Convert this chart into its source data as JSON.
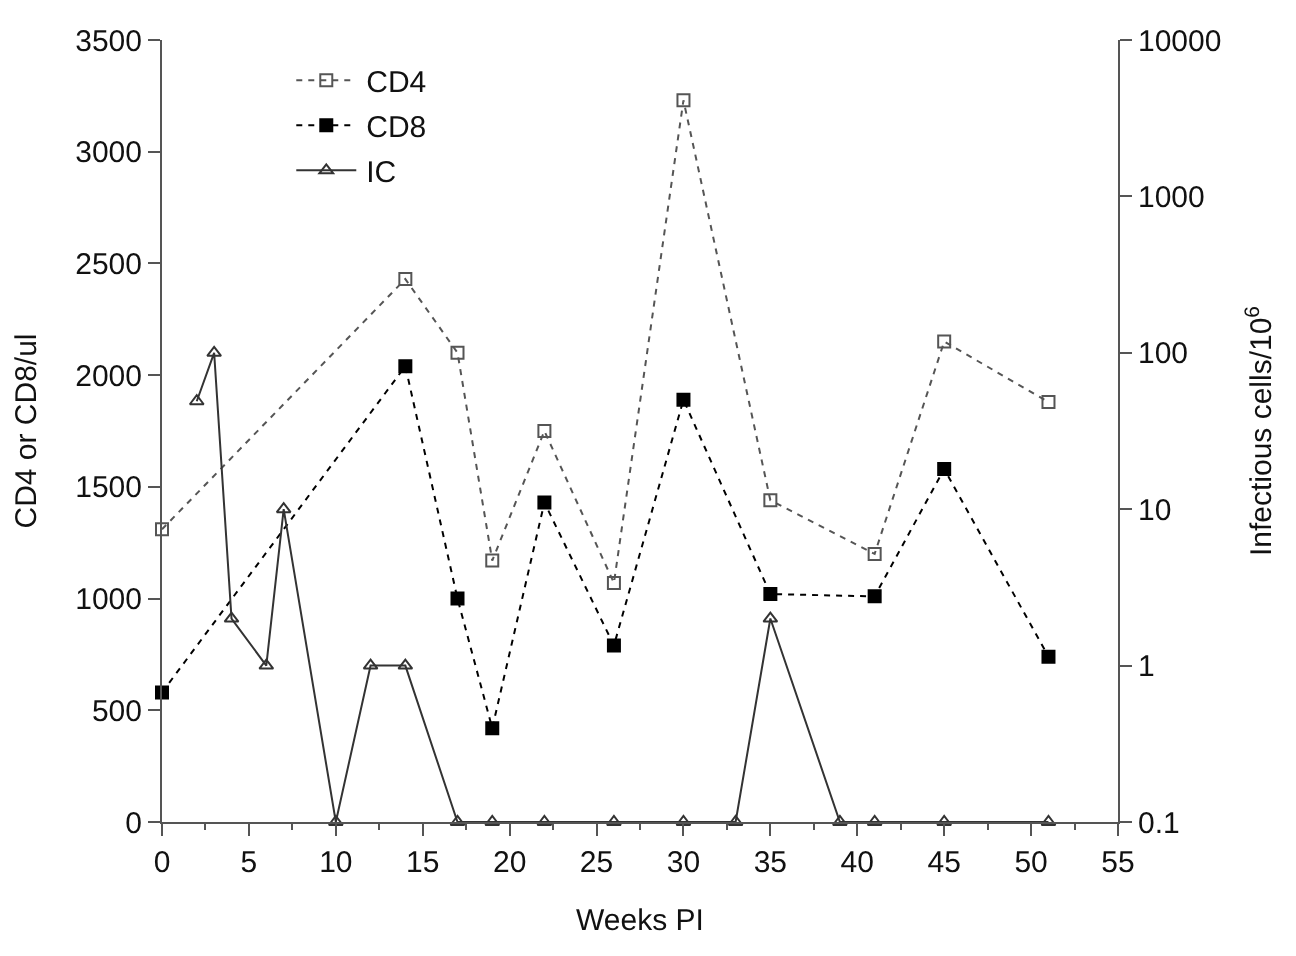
{
  "chart_data": {
    "type": "line",
    "xlabel": "Weeks PI",
    "ylabel": "CD4 or CD8/ul",
    "y2label": "Infectious cells/10$^{6}$",
    "xlim": [
      0,
      55
    ],
    "xticks": [
      0,
      5,
      10,
      15,
      20,
      25,
      30,
      35,
      40,
      45,
      50,
      55
    ],
    "ylim": [
      0,
      3500
    ],
    "yticks": [
      0,
      500,
      1000,
      1500,
      2000,
      2500,
      3000,
      3500
    ],
    "y2lim": [
      0.1,
      10000
    ],
    "y2ticks": [
      0.1,
      1,
      10,
      100,
      1000,
      10000
    ],
    "log": "y2",
    "legend": "top left",
    "series": [
      {
        "name": "CD4",
        "color": "#555555",
        "marker": "square-open",
        "line_style": "dotted",
        "x": [
          0,
          14,
          17,
          19,
          22,
          26,
          30,
          35,
          41,
          45,
          51
        ],
        "values": [
          1310,
          2430,
          2100,
          1170,
          1750,
          1070,
          3230,
          1440,
          1200,
          2150,
          1880
        ]
      },
      {
        "name": "CD8",
        "color": "#000000",
        "marker": "square",
        "line_style": "dotted",
        "x": [
          0,
          14,
          17,
          19,
          22,
          26,
          30,
          35,
          41,
          45,
          51
        ],
        "values": [
          580,
          2040,
          1000,
          420,
          1430,
          790,
          1890,
          1020,
          1010,
          1580,
          740
        ]
      },
      {
        "name": "IC",
        "color": "#333333",
        "marker": "triangle-up-open",
        "line_style": "solid",
        "axis": "y2",
        "x": [
          2,
          3,
          4,
          6,
          7,
          10,
          12,
          14,
          17,
          19,
          22,
          26,
          30,
          33,
          35,
          39,
          41,
          45,
          51
        ],
        "values": [
          49,
          100,
          2,
          1,
          10,
          0.1,
          1,
          1,
          0.1,
          0.1,
          0.1,
          0.1,
          0.1,
          0.1,
          2,
          0.1,
          0.1,
          0.1,
          0.1
        ]
      }
    ]
  }
}
